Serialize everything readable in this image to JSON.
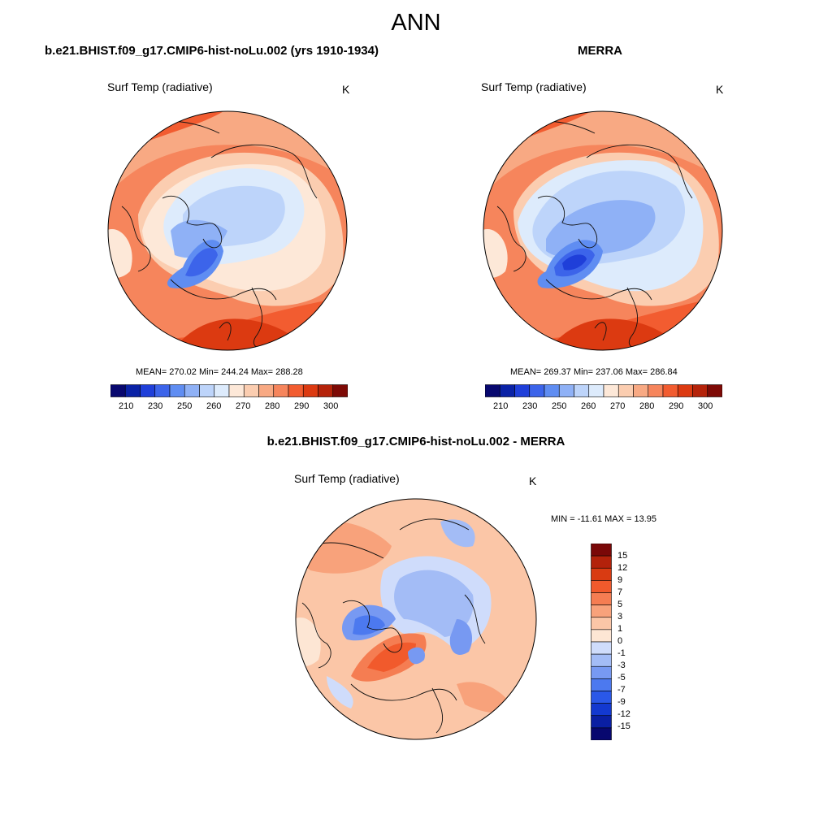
{
  "title": "ANN",
  "palettes": {
    "abs": [
      "#08086f",
      "#0a22a6",
      "#1f3fd9",
      "#3c64ea",
      "#5f8df2",
      "#8fb1f6",
      "#bdd4fa",
      "#ddebfc",
      "#fde8d8",
      "#fbcdb0",
      "#f8a983",
      "#f6855c",
      "#f25c30",
      "#dc3a11",
      "#b5230a",
      "#7e0a06"
    ],
    "diff": [
      "#08086f",
      "#0a1fa3",
      "#1339d0",
      "#2a58e8",
      "#4c79ef",
      "#7799f2",
      "#a3bcf6",
      "#cfdcfb",
      "#fde6d4",
      "#fbc6a7",
      "#f8a27b",
      "#f57d52",
      "#f15a2c",
      "#d93b12",
      "#b3220b",
      "#7a0808"
    ]
  },
  "panels": [
    {
      "title": "b.e21.BHIST.f09_g17.CMIP6-hist-noLu.002 (yrs 1910-1934)",
      "var_label": "Surf Temp (radiative)",
      "units": "K",
      "stats": "MEAN= 270.02  Min= 244.24  Max= 288.28",
      "colorbar": {
        "ticks": [
          "210",
          "230",
          "250",
          "260",
          "270",
          "280",
          "290",
          "300"
        ]
      }
    },
    {
      "title": "MERRA",
      "var_label": "Surf Temp (radiative)",
      "units": "K",
      "stats": "MEAN= 269.37  Min= 237.06  Max= 286.84",
      "colorbar": {
        "ticks": [
          "210",
          "230",
          "250",
          "260",
          "270",
          "280",
          "290",
          "300"
        ]
      }
    },
    {
      "title": "b.e21.BHIST.f09_g17.CMIP6-hist-noLu.002 - MERRA",
      "var_label": "Surf Temp (radiative)",
      "units": "K",
      "stats": "MIN = -11.61 MAX =  13.95",
      "colorbar": {
        "ticks": [
          "15",
          "12",
          "9",
          "7",
          "5",
          "3",
          "1",
          "0",
          "-1",
          "-3",
          "-5",
          "-7",
          "-9",
          "-12",
          "-15"
        ]
      }
    }
  ]
}
